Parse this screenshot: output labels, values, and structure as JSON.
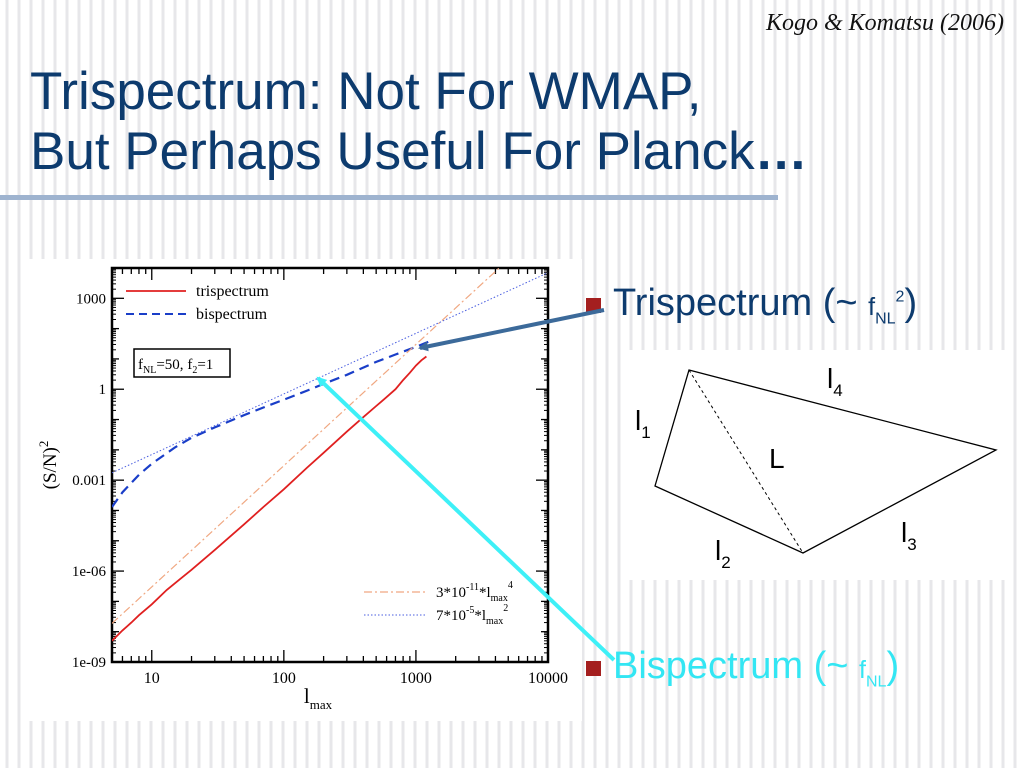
{
  "slide": {
    "citation": "Kogo & Komatsu (2006)",
    "title_line1": "Trispectrum: Not For WMAP,",
    "title_line2": "But Perhaps Useful For Planck",
    "title_dots": "…",
    "bullets": [
      {
        "label": "Trispectrum (~ ",
        "var": "f",
        "sub": "NL",
        "sup": "2",
        "close": ")",
        "color": "#0d3b6e"
      },
      {
        "label": "Bispectrum (~ ",
        "var": "f",
        "sub": "NL",
        "sup": "",
        "close": ")",
        "color": "#33e6f3"
      }
    ],
    "bullet_color": "#a41f1f",
    "arrow_colors": {
      "trispectrum": "#3c6a9a",
      "bispectrum": "#3ef0f7"
    }
  },
  "diagram": {
    "labels": {
      "l1": {
        "base": "l",
        "sub": "1"
      },
      "l2": {
        "base": "l",
        "sub": "2"
      },
      "l3": {
        "base": "l",
        "sub": "3"
      },
      "l4": {
        "base": "l",
        "sub": "4"
      },
      "L": {
        "base": "L",
        "sub": ""
      }
    }
  },
  "chart_data": {
    "type": "line",
    "xscale": "log",
    "yscale": "log",
    "xlim": [
      5,
      10000
    ],
    "ylim": [
      1e-09,
      10000
    ],
    "x_ticks": [
      {
        "v": 10,
        "label": "10"
      },
      {
        "v": 100,
        "label": "100"
      },
      {
        "v": 1000,
        "label": "1000"
      },
      {
        "v": 10000,
        "label": "10000"
      }
    ],
    "y_ticks": [
      {
        "v": 1e-09,
        "label": "1e-09"
      },
      {
        "v": 1e-06,
        "label": "1e-06"
      },
      {
        "v": 0.001,
        "label": "0.001"
      },
      {
        "v": 1,
        "label": "1"
      },
      {
        "v": 1000,
        "label": "1000"
      }
    ],
    "xlabel": {
      "base": "l",
      "sub": "max"
    },
    "ylabel": {
      "text": "(S/N)",
      "sup": "2"
    },
    "annotation": {
      "f": "f",
      "f_sub": "NL",
      "text1": "=50, ",
      "f2": "f",
      "f2_sub": "2",
      "text2": "=1"
    },
    "series": [
      {
        "name": "trispectrum",
        "color": "#e02020",
        "style": "solid",
        "x": [
          5,
          6,
          7,
          8,
          10,
          13,
          16,
          20,
          30,
          50,
          70,
          100,
          150,
          200,
          300,
          400,
          500,
          600,
          700,
          800,
          900,
          1000,
          1100,
          1200
        ],
        "y": [
          5e-09,
          1.1e-08,
          2e-08,
          3.5e-08,
          8e-08,
          2.4e-07,
          5e-07,
          1.1e-06,
          5e-06,
          3.5e-05,
          0.00013,
          0.0005,
          0.0026,
          0.008,
          0.04,
          0.12,
          0.28,
          0.55,
          1,
          2,
          3.5,
          6,
          9,
          12
        ]
      },
      {
        "name": "bispectrum",
        "color": "#1a3ec8",
        "style": "dashed",
        "x": [
          5,
          6,
          8,
          10,
          15,
          20,
          30,
          50,
          70,
          100,
          150,
          200,
          300,
          500,
          700,
          1000,
          1300
        ],
        "y": [
          0.00013,
          0.0004,
          0.0015,
          0.0035,
          0.012,
          0.025,
          0.055,
          0.14,
          0.25,
          0.45,
          0.9,
          1.5,
          3,
          8,
          14,
          25,
          40
        ]
      },
      {
        "name": "3*10^-11*lmax^4",
        "legend": {
          "pre": "3*10",
          "pre_sup": "-11",
          "mid": "*l",
          "mid_sub": "max",
          "post_sup": "4"
        },
        "color": "#f0a882",
        "style": "dashdot",
        "x": [
          5,
          10000
        ],
        "y": [
          1.875e-08,
          300000
        ]
      },
      {
        "name": "7*10^-5*lmax^2",
        "legend": {
          "pre": "7*10",
          "pre_sup": "-5",
          "mid": "*l",
          "mid_sub": "max",
          "post_sup": "2"
        },
        "color": "#4a5ee0",
        "style": "dotted",
        "x": [
          5,
          10000
        ],
        "y": [
          0.00175,
          7000
        ]
      }
    ]
  }
}
